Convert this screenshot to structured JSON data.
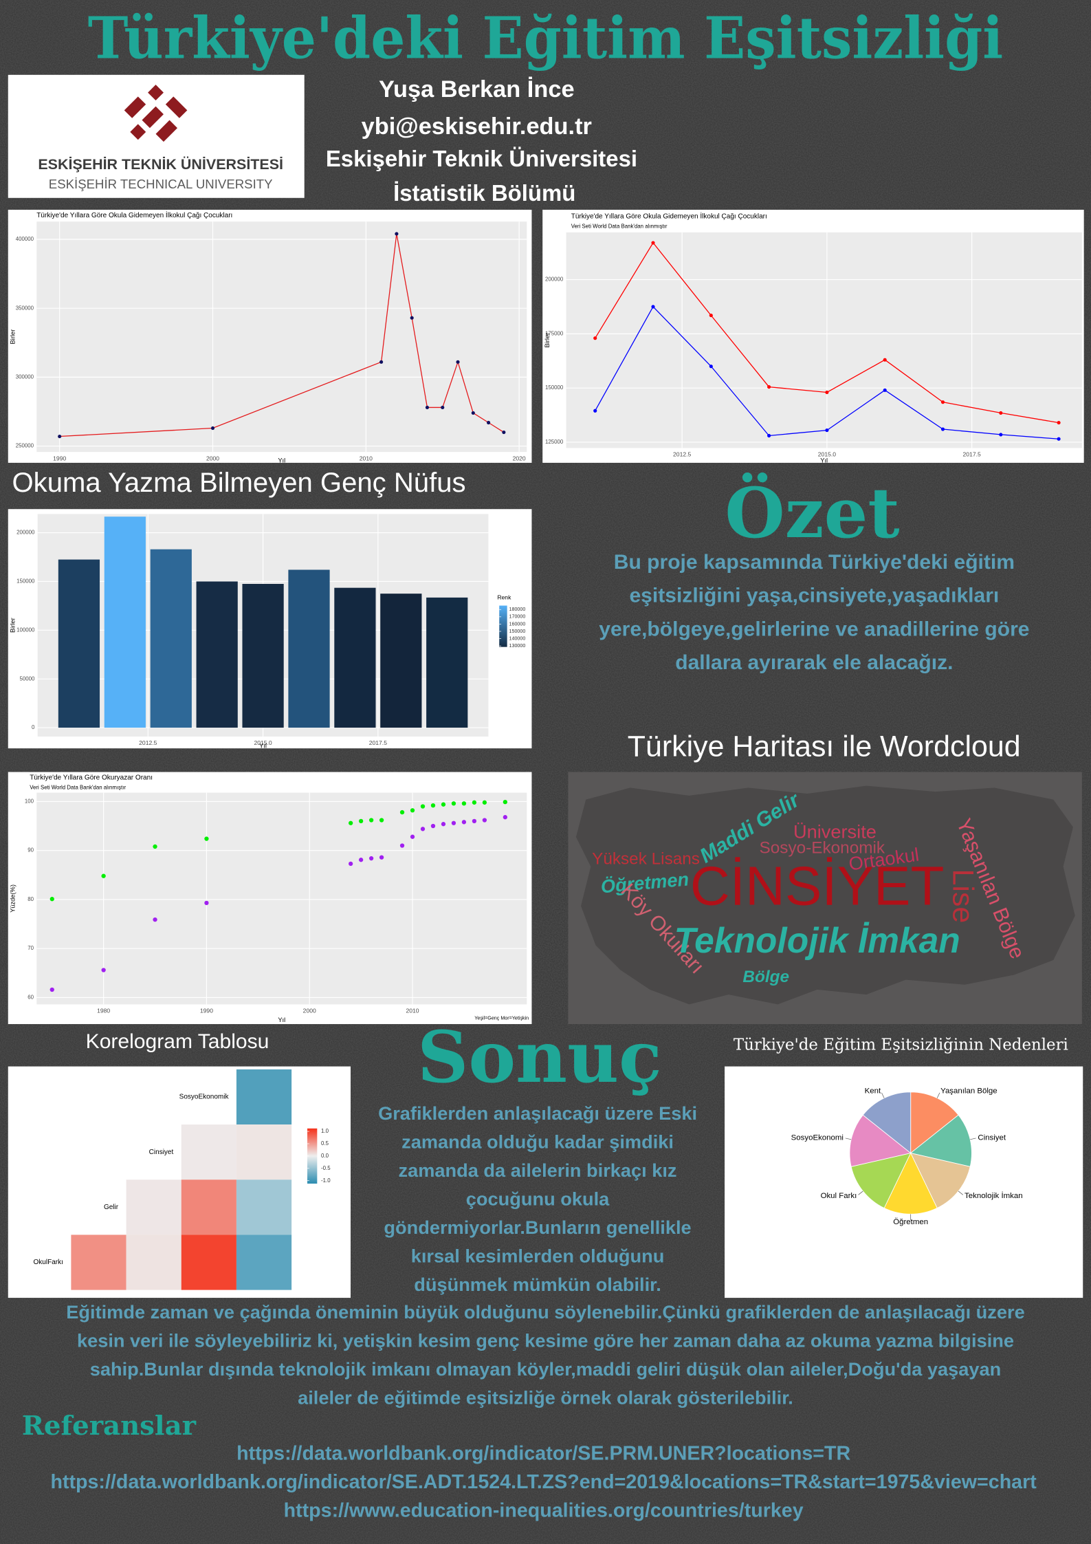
{
  "header": {
    "title": "Türkiye'deki Eğitim Eşitsizliği",
    "author": "Yuşa Berkan İnce",
    "email": "ybi@eskisehir.edu.tr",
    "university": "Eskişehir Teknik Üniversitesi",
    "department": "İstatistik Bölümü"
  },
  "logo": {
    "name": "ESKİŞEHİR TEKNİK ÜNİVERSİTESİ",
    "name_en": "ESKİŞEHİR TECHNICAL UNIVERSITY"
  },
  "sections": {
    "literacy_heading": "Okuma Yazma Bilmeyen Genç Nüfus",
    "map_heading": "Türkiye Haritası ile Wordcloud"
  },
  "summary": {
    "heading": "Özet",
    "lines": [
      "Bu proje kapsamında Türkiye'deki eğitim",
      "eşitsizliğini yaşa,cinsiyete,yaşadıkları",
      "yere,bölgeye,gelirlerine ve anadillerine göre",
      "dallara ayırarak ele alacağız."
    ]
  },
  "wordcloud": {
    "words": [
      "Maddi Gelir",
      "Üniversite",
      "Sosyo-Ekonomik",
      "Yüksek Lisans",
      "Ortaokul",
      "Yaşanılan Bölge",
      "Öğretmen",
      "CİNSİYET",
      "Lise",
      "Köy Okulları",
      "Teknolojik İmkan",
      "Bölge"
    ]
  },
  "conclusion": {
    "heading": "Sonuç",
    "lines": [
      "Grafiklerden anlaşılacağı üzere  Eski",
      "zamanda olduğu kadar şimdiki",
      "zamanda da ailelerin birkaçı kız",
      "çocuğunu okula",
      "göndermiyorlar.Bunların genellikle",
      "kırsal kesimlerden olduğunu",
      "düşünmek mümkün olabilir."
    ],
    "wide_lines": [
      "Eğitimde zaman ve çağında öneminin büyük olduğunu söylenebilir.Çünkü grafiklerden de anlaşılacağı üzere",
      "kesin veri ile söyleyebiliriz ki, yetişkin kesim genç kesime göre her zaman daha az okuma yazma bilgisine",
      "sahip.Bunlar dışında teknolojik imkanı olmayan köyler,maddi geliri düşük olan aileler,Doğu'da yaşayan",
      "aileler de eğitimde eşitsizliğe örnek olarak gösterilebilir."
    ]
  },
  "references": {
    "heading": "Referanslar",
    "links": [
      "https://data.worldbank.org/indicator/SE.PRM.UNER?locations=TR",
      "https://data.worldbank.org/indicator/SE.ADT.1524.LT.ZS?end=2019&locations=TR&start=1975&view=chart",
      "https://www.education-inequalities.org/countries/turkey"
    ]
  },
  "chart_data": [
    {
      "type": "line",
      "title": "Türkiye'de Yıllara Göre Okula Gidemeyen İlkokul Çağı Çocukları",
      "x_label": "Yıl",
      "y_label": "Birler",
      "x": [
        1990,
        2000,
        2011,
        2012,
        2013,
        2014,
        2015,
        2016,
        2017,
        2018,
        2019
      ],
      "series": [
        {
          "color": "#e41a1c",
          "marker_color": "#101060",
          "values": [
            257000,
            263000,
            311000,
            404000,
            343000,
            278000,
            278000,
            311000,
            274000,
            267000,
            260000
          ]
        }
      ],
      "xlim": [
        1988.5,
        2020.5
      ],
      "ylim": [
        245700,
        412900
      ],
      "xticks": [
        1990,
        2000,
        2010,
        2020
      ],
      "yticks": [
        250000,
        300000,
        350000,
        400000
      ],
      "grid": true
    },
    {
      "type": "line",
      "title": "Türkiye'de Yıllara Göre Okula Gidemeyen İlkokul Çağı Çocukları",
      "subtitle": "Veri Seti World Data Bank'dan alınmıştır",
      "x_label": "Yıl",
      "y_label": "Birler",
      "x": [
        2011,
        2012,
        2013,
        2014,
        2015,
        2016,
        2017,
        2018,
        2019
      ],
      "series": [
        {
          "color": "#ff0000",
          "marker_color": "#ff0000",
          "values": [
            173000,
            217000,
            183500,
            150500,
            148000,
            163000,
            143500,
            138500,
            134000
          ]
        },
        {
          "color": "#0000ff",
          "marker_color": "#0000ff",
          "values": [
            139500,
            187500,
            160000,
            128000,
            130500,
            149000,
            131000,
            128500,
            126500
          ]
        }
      ],
      "xlim": [
        2010.5,
        2019.4
      ],
      "ylim": [
        122300,
        221800
      ],
      "xticks": [
        2012.5,
        {
          "value": 2015,
          "label": "2015.0"
        },
        2017.5
      ],
      "yticks": [
        125000,
        150000,
        175000,
        200000
      ],
      "grid": true
    },
    {
      "type": "bar",
      "x_label": "Yıl",
      "y_label": "Birler",
      "x": [
        2011,
        2012,
        2013,
        2014,
        2015,
        2016,
        2017,
        2018,
        2019
      ],
      "values": [
        172500,
        216500,
        183000,
        150000,
        147500,
        162000,
        143500,
        137500,
        133500
      ],
      "colors": [
        "#1c3f60",
        "#56b1f7",
        "#2e6897",
        "#162c45",
        "#152a42",
        "#23537c",
        "#132840",
        "#13253b",
        "#132b43"
      ],
      "xlim": [
        2010.1,
        2019.9
      ],
      "ylim": [
        -9100,
        219200
      ],
      "xticks": [
        2012.5,
        {
          "value": 2015,
          "label": "2015.0"
        },
        2017.5
      ],
      "yticks": [
        0,
        50000,
        100000,
        150000,
        200000
      ],
      "grid": true,
      "legend_title": "Renk",
      "colorbar_colors": [
        "#132b43",
        "#56b1f7"
      ],
      "colorbar_lim": [
        128600,
        185400
      ],
      "colorbar_ticks": [
        180000,
        170000,
        160000,
        150000,
        140000,
        130000
      ]
    },
    {
      "type": "scatter",
      "title": "Türkiye'de Yıllara Göre Okuryazar Oranı",
      "subtitle": "Veri Seti World Data Bank'dan alınmıştır",
      "x_label": "Yıl",
      "y_label": "Yüzde(%)",
      "caption": "Yeşil=Genç Mor=Yetişkin",
      "x": [
        1975,
        1980,
        1985,
        1990,
        2004,
        2005,
        2006,
        2007,
        2009,
        2010,
        2011,
        2012,
        2013,
        2014,
        2015,
        2016,
        2017,
        2019
      ],
      "series": [
        {
          "color": "#00ee00",
          "values": [
            80.1,
            84.8,
            90.8,
            92.4,
            95.6,
            96.0,
            96.2,
            96.2,
            97.8,
            98.2,
            99.0,
            99.2,
            99.4,
            99.6,
            99.6,
            99.8,
            99.8,
            99.9
          ]
        },
        {
          "color": "#a020f0",
          "values": [
            61.6,
            65.6,
            75.9,
            79.3,
            87.3,
            88.1,
            88.4,
            88.6,
            91.0,
            92.8,
            94.4,
            95.0,
            95.4,
            95.6,
            95.8,
            96.0,
            96.2,
            96.8
          ]
        }
      ],
      "xlim": [
        1973.5,
        2021.1
      ],
      "ylim": [
        58.6,
        101.8
      ],
      "xticks": [
        1980,
        1990,
        2000,
        2010
      ],
      "yticks": [
        60,
        70,
        80,
        90,
        100
      ],
      "grid": true
    },
    {
      "type": "heatmap",
      "title": "Korelogram Tablosu",
      "rows": [
        "SosyoEkonomik",
        "Cinsiyet",
        "Gelir",
        "OkulFarkı"
      ],
      "values": [
        [
          null,
          null,
          null,
          -0.8
        ],
        [
          null,
          null,
          0.03,
          0.05
        ],
        [
          null,
          0.04,
          0.55,
          -0.4
        ],
        [
          0.5,
          0.06,
          0.9,
          -0.75
        ]
      ],
      "zlim": [
        -1,
        1
      ],
      "colors": [
        "#2b8cb0",
        "#eeeeee",
        "#f4311a"
      ],
      "colorbar_ticks": [
        {
          "value": 1,
          "label": "1.0"
        },
        0.5,
        {
          "value": 0,
          "label": "0.0"
        },
        -0.5,
        {
          "value": -1,
          "label": "-1.0"
        }
      ]
    },
    {
      "type": "pie",
      "title": "Türkiye'de Eğitim Eşitsizliğinin Nedenleri",
      "categories": [
        "Yaşanılan Bölge",
        "Cinsiyet",
        "Teknolojik İmkan",
        "Öğretmen",
        "Okul Farkı",
        "SosyoEkonomi",
        "Kent"
      ],
      "values": [
        1,
        1,
        1,
        1,
        1,
        1,
        1
      ],
      "colors": [
        "#fc8d62",
        "#66c2a5",
        "#e5c494",
        "#ffd92f",
        "#a6d854",
        "#e78ac3",
        "#8da0cb"
      ]
    }
  ]
}
